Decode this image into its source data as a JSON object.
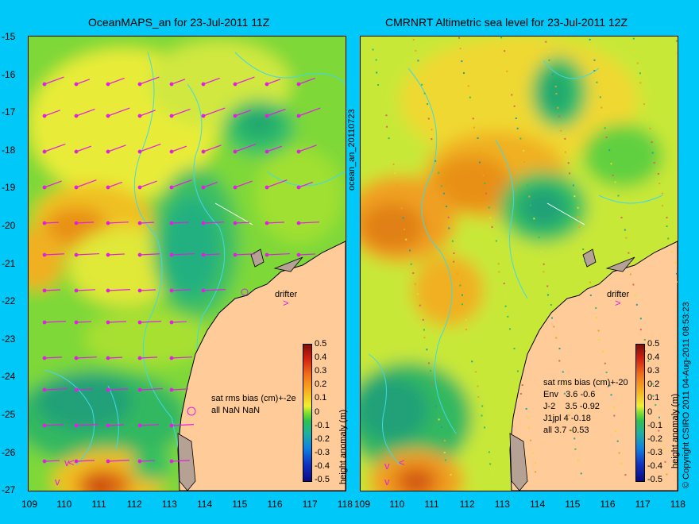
{
  "left_panel": {
    "title": "OceanMAPS_an for 23-Jul-2011 11Z",
    "stats_lines": [
      "sat rms bias (cm)+-2e",
      "all NaN NaN"
    ],
    "drifter_label": "drifter"
  },
  "right_panel": {
    "title": "CMRNRT Altimetric sea level  for 23-Jul-2011 12Z",
    "stats_lines": [
      "sat rms bias (cm)+-20",
      "Env   3.6 -0.6",
      "J-2    3.5 -0.92",
      "J1jpl 4 -0.18",
      "all 3.7 -0.53"
    ],
    "drifter_label": "drifter"
  },
  "side_label": "ocean_an_20110723",
  "copyright": "© Copyright CSIRO 2011   04-Aug-2011 08:53:23",
  "colorbar_label": "height anomaly (m)",
  "colorbar_ticks": [
    "0.5",
    "0.4",
    "0.3",
    "0.2",
    "0.1",
    "0",
    "-0.1",
    "-0.2",
    "-0.3",
    "-0.4",
    "-0.5"
  ],
  "y_ticks": [
    "-15",
    "-16",
    "-17",
    "-18",
    "-19",
    "-20",
    "-21",
    "-22",
    "-23",
    "-24",
    "-25",
    "-26",
    "-27"
  ],
  "x_ticks": [
    "109",
    "110",
    "111",
    "112",
    "113",
    "114",
    "115",
    "116",
    "117",
    "118"
  ],
  "colors": {
    "background": "#00c8f8",
    "land": "#ffcc99",
    "coast_dark": "#b5a295",
    "contour": "#40d8e8",
    "arrow": "#e020e0"
  }
}
